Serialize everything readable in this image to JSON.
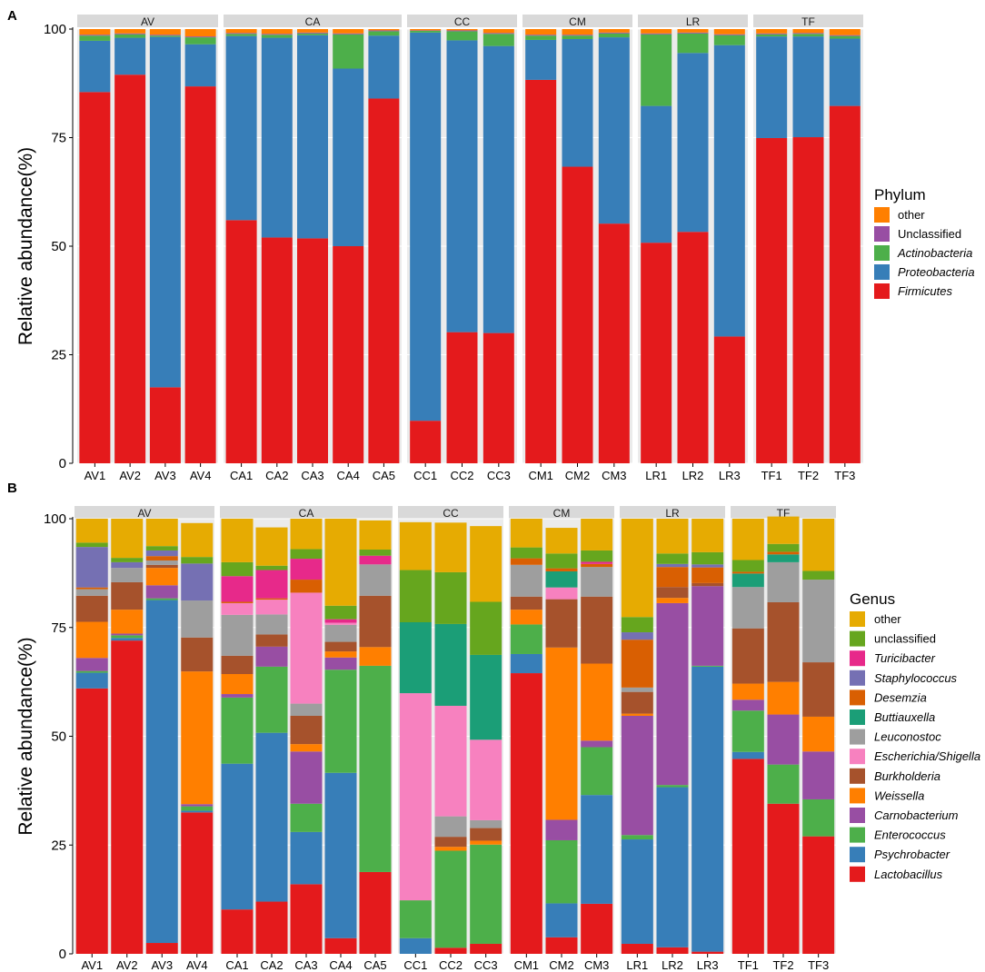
{
  "figure": {
    "panels": [
      "A",
      "B"
    ]
  },
  "chart_data": [
    {
      "type": "bar",
      "stacked": true,
      "panel_label": "A",
      "ylabel": "Relative abundance(%)",
      "xlabel": "",
      "ylim": [
        0,
        100
      ],
      "yticks": [
        0,
        25,
        50,
        75,
        100
      ],
      "legend_title": "Phylum",
      "legend_position": "right",
      "groups": [
        {
          "name": "AV",
          "categories": [
            "AV1",
            "AV2",
            "AV3",
            "AV4"
          ]
        },
        {
          "name": "CA",
          "categories": [
            "CA1",
            "CA2",
            "CA3",
            "CA4",
            "CA5"
          ]
        },
        {
          "name": "CC",
          "categories": [
            "CC1",
            "CC2",
            "CC3"
          ]
        },
        {
          "name": "CM",
          "categories": [
            "CM1",
            "CM2",
            "CM3"
          ]
        },
        {
          "name": "LR",
          "categories": [
            "LR1",
            "LR2",
            "LR3"
          ]
        },
        {
          "name": "TF",
          "categories": [
            "TF1",
            "TF2",
            "TF3"
          ]
        }
      ],
      "categories": [
        "AV1",
        "AV2",
        "AV3",
        "AV4",
        "CA1",
        "CA2",
        "CA3",
        "CA4",
        "CA5",
        "CC1",
        "CC2",
        "CC3",
        "CM1",
        "CM2",
        "CM3",
        "LR1",
        "LR2",
        "LR3",
        "TF1",
        "TF2",
        "TF3"
      ],
      "series": [
        {
          "name": "Firmicutes",
          "italic": true,
          "color": "#E41A1C",
          "values": [
            85.5,
            89.5,
            17.5,
            86.8,
            56,
            52,
            51.8,
            50,
            84,
            9.8,
            30.2,
            30.0,
            88.3,
            68.3,
            55.2,
            50.8,
            53.3,
            29.2,
            74.9,
            75.1,
            82.3
          ]
        },
        {
          "name": "Proteobacteria",
          "italic": true,
          "color": "#377EB8",
          "values": [
            11.8,
            8.5,
            80.7,
            9.7,
            42.4,
            46,
            46.8,
            40.9,
            14.5,
            89.4,
            67.2,
            66.1,
            9.2,
            29.4,
            42.9,
            31.5,
            41.2,
            67.1,
            23.4,
            23.2,
            15.5
          ]
        },
        {
          "name": "Actinobacteria",
          "italic": true,
          "color": "#4DAF4A",
          "values": [
            1.2,
            0.8,
            0.3,
            1.6,
            0.5,
            0.7,
            0.4,
            7.9,
            1.0,
            0.4,
            2.1,
            2.8,
            1.0,
            0.8,
            0.9,
            16.5,
            4.5,
            2.3,
            0.5,
            0.6,
            0.6
          ]
        },
        {
          "name": "Unclassified",
          "italic": false,
          "color": "#984EA3",
          "values": [
            0.2,
            0.2,
            0.2,
            0.2,
            0.2,
            0.2,
            0.2,
            0.2,
            0.2,
            0.1,
            0.2,
            0.2,
            0.2,
            0.2,
            0.2,
            0.2,
            0.2,
            0.2,
            0.2,
            0.2,
            0.2
          ]
        },
        {
          "name": "other",
          "italic": false,
          "color": "#FF7F00",
          "values": [
            1.3,
            1.0,
            1.3,
            1.7,
            0.9,
            1.1,
            0.8,
            1.0,
            0.3,
            0.3,
            0.3,
            0.9,
            1.3,
            1.3,
            0.8,
            1.0,
            0.8,
            1.2,
            1.0,
            0.9,
            1.4
          ]
        }
      ],
      "legend_order": [
        "other",
        "Unclassified",
        "Actinobacteria",
        "Proteobacteria",
        "Firmicutes"
      ]
    },
    {
      "type": "bar",
      "stacked": true,
      "panel_label": "B",
      "ylabel": "Relative abundance(%)",
      "xlabel": "",
      "ylim": [
        0,
        100
      ],
      "yticks": [
        0,
        25,
        50,
        75,
        100
      ],
      "legend_title": "Genus",
      "legend_position": "right",
      "groups": [
        {
          "name": "AV",
          "categories": [
            "AV1",
            "AV2",
            "AV3",
            "AV4"
          ]
        },
        {
          "name": "CA",
          "categories": [
            "CA1",
            "CA2",
            "CA3",
            "CA4",
            "CA5"
          ]
        },
        {
          "name": "CC",
          "categories": [
            "CC1",
            "CC2",
            "CC3"
          ]
        },
        {
          "name": "CM",
          "categories": [
            "CM1",
            "CM2",
            "CM3"
          ]
        },
        {
          "name": "LR",
          "categories": [
            "LR1",
            "LR2",
            "LR3"
          ]
        },
        {
          "name": "TF",
          "categories": [
            "TF1",
            "TF2",
            "TF3"
          ]
        }
      ],
      "categories": [
        "AV1",
        "AV2",
        "AV3",
        "AV4",
        "CA1",
        "CA2",
        "CA3",
        "CA4",
        "CA5",
        "CC1",
        "CC2",
        "CC3",
        "CM1",
        "CM2",
        "CM3",
        "LR1",
        "LR2",
        "LR3",
        "TF1",
        "TF2",
        "TF3"
      ],
      "series": [
        {
          "name": "Lactobacillus",
          "italic": true,
          "color": "#E41A1C",
          "values": [
            61,
            72,
            2.5,
            32.5,
            10.2,
            12,
            16,
            3.6,
            18.8,
            0,
            1.4,
            2.3,
            64.5,
            3.8,
            11.5,
            2.3,
            1.5,
            0.5,
            44.8,
            34.5,
            27
          ]
        },
        {
          "name": "Psychrobacter",
          "italic": true,
          "color": "#377EB8",
          "values": [
            3.6,
            0.6,
            78.8,
            0.4,
            33.5,
            38.8,
            12,
            38,
            0,
            3.6,
            0,
            0,
            4.4,
            7.8,
            25,
            24,
            36.8,
            65.5,
            1.6,
            0,
            0
          ]
        },
        {
          "name": "Enterococcus",
          "italic": true,
          "color": "#4DAF4A",
          "values": [
            0.4,
            0.6,
            0.4,
            1,
            15.2,
            15.2,
            6.5,
            23.7,
            47.4,
            8.7,
            22.3,
            22.8,
            6.8,
            14.5,
            11,
            1,
            0.5,
            0.2,
            9.5,
            9,
            8.5
          ]
        },
        {
          "name": "Carnobacterium",
          "italic": true,
          "color": "#984EA3",
          "values": [
            3,
            0.4,
            3,
            0.5,
            0.8,
            4.6,
            12,
            2.8,
            0,
            0,
            0,
            0,
            0,
            4.7,
            1.5,
            27.4,
            41.8,
            18.3,
            2.5,
            11.5,
            11
          ]
        },
        {
          "name": "Weissella",
          "italic": true,
          "color": "#FF7F00",
          "values": [
            8.3,
            5.5,
            4,
            30.5,
            4.6,
            0,
            1.7,
            1.4,
            4.3,
            0,
            0.9,
            0.9,
            3.4,
            39.6,
            17.7,
            0.5,
            1.2,
            0,
            3.7,
            7.5,
            8
          ]
        },
        {
          "name": "Burkholderia",
          "italic": true,
          "color": "#A6522C",
          "values": [
            6,
            6.3,
            0.7,
            7.8,
            4.2,
            2.8,
            6.5,
            2.2,
            11.8,
            0,
            2.3,
            2.9,
            3,
            11.1,
            15.4,
            5,
            2.5,
            0.7,
            12.7,
            18.3,
            12.5
          ]
        },
        {
          "name": "Leuconostoc",
          "italic": true,
          "color": "#9E9E9E",
          "values": [
            1.5,
            3.3,
            1,
            8.5,
            9.4,
            4.6,
            2.8,
            3.9,
            7.2,
            0,
            4.7,
            1.8,
            7.3,
            0,
            6.8,
            1,
            0,
            0,
            9.5,
            9.2,
            19
          ]
        },
        {
          "name": "Escherichia/Shigella",
          "italic": true,
          "color": "#F781BF",
          "values": [
            0,
            0,
            0,
            0,
            2.7,
            3.4,
            25.5,
            0.5,
            0,
            47.6,
            25.4,
            18.5,
            0,
            2.7,
            0,
            0,
            0,
            0,
            0,
            0,
            0
          ]
        },
        {
          "name": "Buttiauxella",
          "italic": true,
          "color": "#1B9E77",
          "values": [
            0,
            0,
            0,
            0,
            0,
            0,
            0,
            0,
            0,
            16.3,
            18.8,
            19.5,
            0,
            3.7,
            0,
            0,
            0,
            0,
            3.1,
            1.8,
            0
          ]
        },
        {
          "name": "Desemzia",
          "italic": true,
          "color": "#D95F02",
          "values": [
            0.4,
            0,
            1,
            0,
            0.3,
            0.3,
            3,
            0,
            0,
            0,
            0,
            0,
            1.5,
            0.7,
            0.7,
            11,
            4.6,
            3.6,
            0.4,
            0.6,
            0
          ]
        },
        {
          "name": "Staphylococcus",
          "italic": true,
          "color": "#7570B3",
          "values": [
            9.3,
            1.3,
            1.3,
            8.5,
            0,
            0,
            0,
            0,
            0,
            0,
            0,
            0,
            0,
            0,
            0,
            1.7,
            0.7,
            0.7,
            0,
            0,
            0
          ]
        },
        {
          "name": "Turicibacter",
          "italic": true,
          "color": "#E7298A",
          "values": [
            0,
            0,
            0,
            0,
            5.9,
            6.5,
            4.8,
            0.8,
            2,
            0,
            0,
            0,
            0,
            0,
            0.5,
            0,
            0,
            0,
            0,
            0,
            0
          ]
        },
        {
          "name": "unclassified",
          "italic": false,
          "color": "#66A61E",
          "values": [
            1,
            1,
            1,
            1.5,
            3.2,
            1,
            2.2,
            3.1,
            1.4,
            12,
            11.9,
            12.2,
            2.5,
            3.4,
            2.6,
            3.5,
            2.4,
            2.8,
            2.7,
            1.8,
            2
          ]
        },
        {
          "name": "other",
          "italic": false,
          "color": "#E6AB02",
          "values": [
            5.5,
            9,
            6.3,
            7.8,
            10,
            8.8,
            7,
            20,
            6.7,
            11,
            11.4,
            17.4,
            6.6,
            5.9,
            7.3,
            22.6,
            8,
            7.7,
            9.5,
            6.3,
            12
          ]
        }
      ],
      "legend_order": [
        "other",
        "unclassified",
        "Turicibacter",
        "Staphylococcus",
        "Desemzia",
        "Buttiauxella",
        "Leuconostoc",
        "Escherichia/Shigella",
        "Burkholderia",
        "Weissella",
        "Carnobacterium",
        "Enterococcus",
        "Psychrobacter",
        "Lactobacillus"
      ]
    }
  ]
}
